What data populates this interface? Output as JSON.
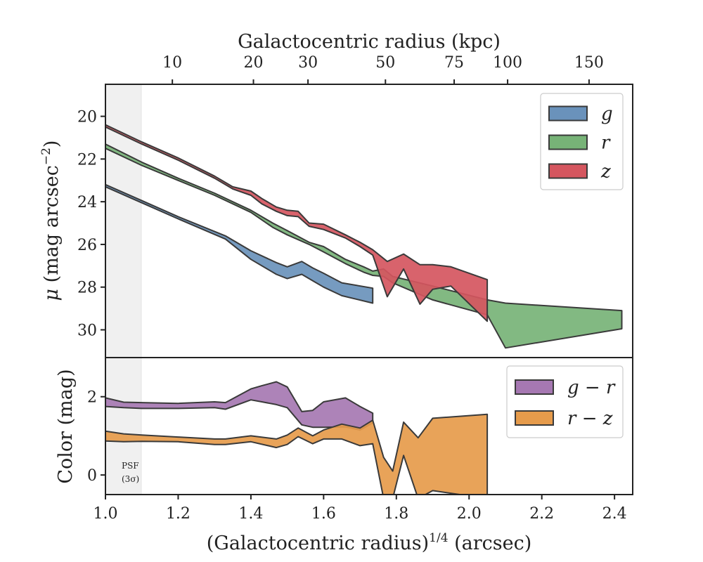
{
  "chart_data": [
    {
      "type": "area",
      "panel": "top",
      "xlabel": "(Galactocentric radius)^{1/4} (arcsec)",
      "xlabel_parts": [
        "(Galactocentric radius)",
        "1/4",
        " (arcsec)"
      ],
      "ylabel": "μ (mag arcsec−2)",
      "ylabel_parts": [
        "μ",
        " (mag arcsec",
        "−2",
        ")"
      ],
      "top_xlabel": "Galactocentric radius (kpc)",
      "top_ticks": [
        {
          "label": "10",
          "x": 1.184
        },
        {
          "label": "20",
          "x": 1.407
        },
        {
          "label": "30",
          "x": 1.557
        },
        {
          "label": "50",
          "x": 1.77
        },
        {
          "label": "75",
          "x": 1.959
        },
        {
          "label": "100",
          "x": 2.106
        },
        {
          "label": "150",
          "x": 2.33
        }
      ],
      "xlim": [
        1.0,
        2.45
      ],
      "ylim": [
        31.3,
        18.5
      ],
      "y_inverted": true,
      "yticks": [
        20,
        22,
        24,
        26,
        28,
        30
      ],
      "ytick_labels": [
        "20",
        "22",
        "24",
        "26",
        "28",
        "30"
      ],
      "psf_band": [
        1.0,
        1.1
      ],
      "legend_position": "top-right",
      "series": [
        {
          "name": "g",
          "color": "#6a92bb",
          "x": [
            1.0,
            1.1,
            1.2,
            1.33,
            1.4,
            1.47,
            1.5,
            1.54,
            1.57,
            1.6,
            1.65,
            1.735
          ],
          "upper": [
            23.3,
            24.05,
            24.8,
            25.75,
            26.7,
            27.4,
            27.6,
            27.4,
            27.7,
            28.0,
            28.4,
            28.75
          ],
          "lower": [
            23.2,
            23.95,
            24.7,
            25.6,
            26.3,
            26.85,
            27.05,
            26.8,
            27.1,
            27.35,
            27.8,
            28.05
          ]
        },
        {
          "name": "r",
          "color": "#77b377",
          "x": [
            1.0,
            1.1,
            1.2,
            1.3,
            1.4,
            1.46,
            1.5,
            1.56,
            1.6,
            1.66,
            1.71,
            1.735,
            1.765,
            1.79,
            1.9,
            2.05,
            2.1,
            2.42
          ],
          "upper": [
            21.5,
            22.3,
            23.0,
            23.7,
            24.5,
            25.2,
            25.55,
            26.0,
            26.35,
            26.9,
            27.3,
            27.45,
            27.5,
            27.8,
            28.6,
            29.3,
            30.85,
            29.95
          ],
          "lower": [
            21.3,
            22.15,
            22.9,
            23.6,
            24.4,
            25.0,
            25.35,
            25.9,
            26.1,
            26.7,
            27.05,
            27.25,
            27.15,
            27.5,
            27.95,
            28.6,
            28.75,
            29.1
          ]
        },
        {
          "name": "z",
          "color": "#d5565f",
          "x": [
            1.0,
            1.1,
            1.2,
            1.3,
            1.35,
            1.4,
            1.43,
            1.47,
            1.5,
            1.53,
            1.56,
            1.6,
            1.66,
            1.7,
            1.735,
            1.775,
            1.82,
            1.865,
            1.9,
            1.95,
            2.05
          ],
          "upper": [
            20.5,
            21.3,
            22.05,
            22.9,
            23.4,
            23.7,
            24.1,
            24.45,
            24.65,
            24.7,
            25.15,
            25.3,
            25.7,
            26.1,
            26.5,
            28.45,
            27.15,
            28.8,
            28.1,
            27.95,
            29.6
          ],
          "lower": [
            20.4,
            21.2,
            21.95,
            22.8,
            23.3,
            23.5,
            23.85,
            24.25,
            24.4,
            24.45,
            25.0,
            25.05,
            25.55,
            25.9,
            26.25,
            26.8,
            26.45,
            26.95,
            26.95,
            27.05,
            27.65
          ]
        }
      ]
    },
    {
      "type": "area",
      "panel": "bottom",
      "xlabel": "(Galactocentric radius)^{1/4} (arcsec)",
      "ylabel": "Color (mag)",
      "xlim": [
        1.0,
        2.45
      ],
      "ylim": [
        -0.5,
        3.0
      ],
      "yticks": [
        0,
        2
      ],
      "ytick_labels": [
        "0",
        "2"
      ],
      "xticks": [
        1.0,
        1.2,
        1.4,
        1.6,
        1.8,
        2.0,
        2.2,
        2.4
      ],
      "xtick_labels": [
        "1.0",
        "1.2",
        "1.4",
        "1.6",
        "1.8",
        "2.0",
        "2.2",
        "2.4"
      ],
      "legend_position": "top-right",
      "annotation": {
        "line1": "PSF",
        "line2": "(3σ)"
      },
      "series": [
        {
          "name": "g − r",
          "color": "#a678b2",
          "x": [
            1.0,
            1.05,
            1.1,
            1.2,
            1.3,
            1.33,
            1.4,
            1.43,
            1.47,
            1.5,
            1.54,
            1.57,
            1.6,
            1.66,
            1.7,
            1.735
          ],
          "upper": [
            1.97,
            1.86,
            1.85,
            1.83,
            1.87,
            1.85,
            2.2,
            2.28,
            2.38,
            2.25,
            1.62,
            1.65,
            1.87,
            1.97,
            1.75,
            1.58
          ],
          "lower": [
            1.75,
            1.72,
            1.7,
            1.7,
            1.72,
            1.68,
            1.92,
            1.87,
            1.8,
            1.72,
            1.28,
            1.22,
            1.22,
            1.23,
            1.15,
            1.33
          ]
        },
        {
          "name": "r − z",
          "color": "#e69b4b",
          "x": [
            1.0,
            1.05,
            1.1,
            1.2,
            1.3,
            1.33,
            1.4,
            1.47,
            1.5,
            1.53,
            1.57,
            1.6,
            1.65,
            1.7,
            1.735,
            1.765,
            1.79,
            1.82,
            1.86,
            1.9,
            2.05
          ],
          "upper": [
            1.12,
            1.05,
            1.02,
            0.97,
            0.92,
            0.92,
            1.0,
            0.92,
            1.02,
            1.2,
            1.0,
            1.15,
            1.3,
            1.2,
            1.4,
            0.45,
            0.1,
            1.35,
            0.95,
            1.45,
            1.55
          ],
          "lower": [
            0.87,
            0.85,
            0.86,
            0.85,
            0.78,
            0.78,
            0.85,
            0.7,
            0.78,
            0.98,
            0.8,
            0.92,
            0.92,
            0.75,
            0.8,
            -0.6,
            -0.6,
            0.5,
            -0.6,
            -0.4,
            -0.6
          ]
        }
      ]
    }
  ]
}
